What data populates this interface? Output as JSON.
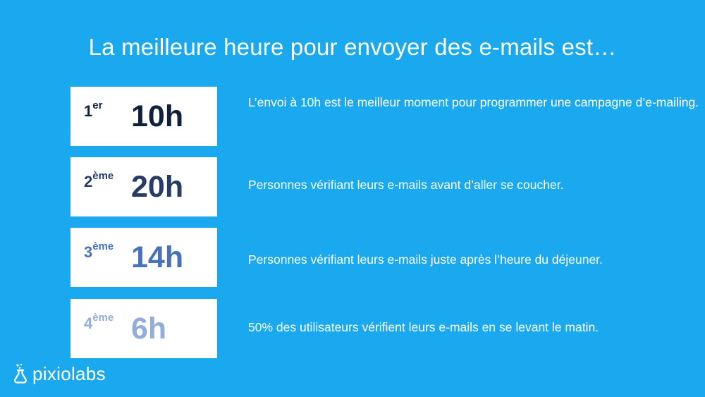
{
  "title": "La meilleure heure pour envoyer des e-mails est…",
  "items": [
    {
      "rank_num": "1",
      "rank_suffix": "er",
      "hour": "10h",
      "color": "#0F1F3C",
      "description": "L’envoi à 10h est le meilleur moment pour programmer une campagne d’e-mailing."
    },
    {
      "rank_num": "2",
      "rank_suffix": "ème",
      "hour": "20h",
      "color": "#263B66",
      "description": "Personnes vérifiant leurs e-mails avant d’aller se coucher."
    },
    {
      "rank_num": "3",
      "rank_suffix": "ème",
      "hour": "14h",
      "color": "#4872BC",
      "description": "Personnes vérifiant leurs e-mails juste après l’heure du déjeuner."
    },
    {
      "rank_num": "4",
      "rank_suffix": "ème",
      "hour": "6h",
      "color": "#92ADD9",
      "description": "50% des utilisateurs vérifient leurs e-mails en se levant le matin."
    }
  ],
  "logo": {
    "text": "pixiolabs",
    "icon": "flask-icon"
  }
}
